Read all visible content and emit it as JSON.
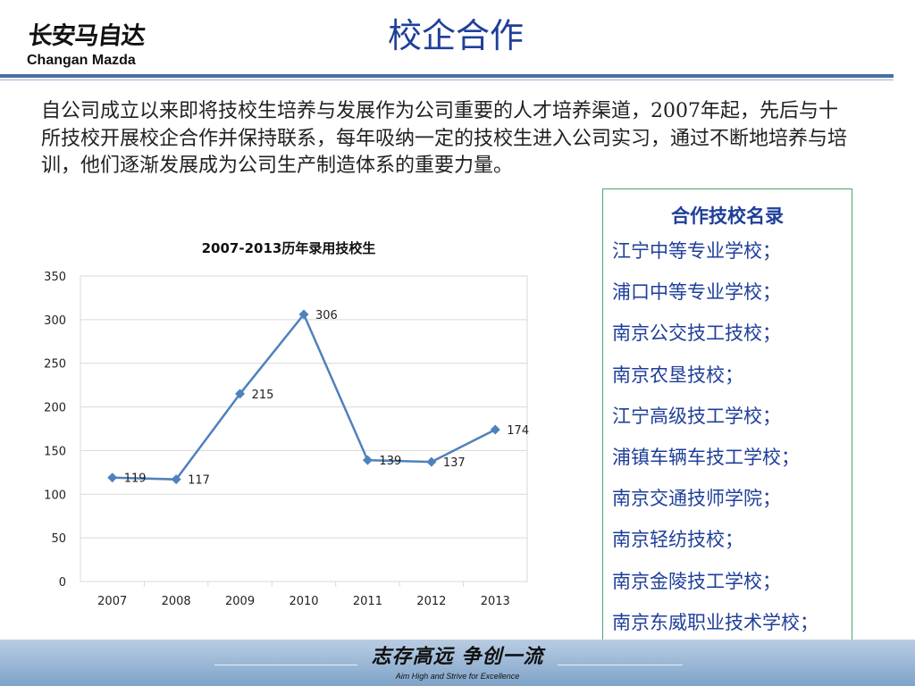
{
  "logo": {
    "cn": "长安马自达",
    "en": "Changan Mazda"
  },
  "title": "校企合作",
  "intro": "自公司成立以来即将技校生培养与发展作为公司重要的人才培养渠道，2007年起，先后与十所技校开展校企合作并保持联系，每年吸纳一定的技校生进入公司实习，通过不断地培养与培训，他们逐渐发展成为公司生产制造体系的重要力量。",
  "schools": {
    "title": "合作技校名录",
    "items": [
      "江宁中等专业学校；",
      "浦口中等专业学校；",
      "南京公交技工技校；",
      "南京农垦技校；",
      "江宁高级技工学校；",
      "浦镇车辆车技工学校；",
      "南京交通技师学院；",
      "南京轻纺技校；",
      "南京金陵技工学校；",
      "南京东威职业技术学校；"
    ]
  },
  "footer": {
    "slogan_cn": "志存高远 争创一流",
    "slogan_en": "Aim High and Strive for Excellence"
  },
  "colors": {
    "line": "#4f81bd",
    "title": "#1f3f9a",
    "grid": "#d9d9d9"
  },
  "chart_data": {
    "type": "line",
    "title": "2007-2013历年录用技校生",
    "categories": [
      "2007",
      "2008",
      "2009",
      "2010",
      "2011",
      "2012",
      "2013"
    ],
    "values": [
      119,
      117,
      215,
      306,
      139,
      137,
      174
    ],
    "ylim": [
      0,
      350
    ],
    "yticks": [
      0,
      50,
      100,
      150,
      200,
      250,
      300,
      350
    ],
    "grid": true,
    "legend": "none",
    "marker": "diamond",
    "data_labels": true
  }
}
